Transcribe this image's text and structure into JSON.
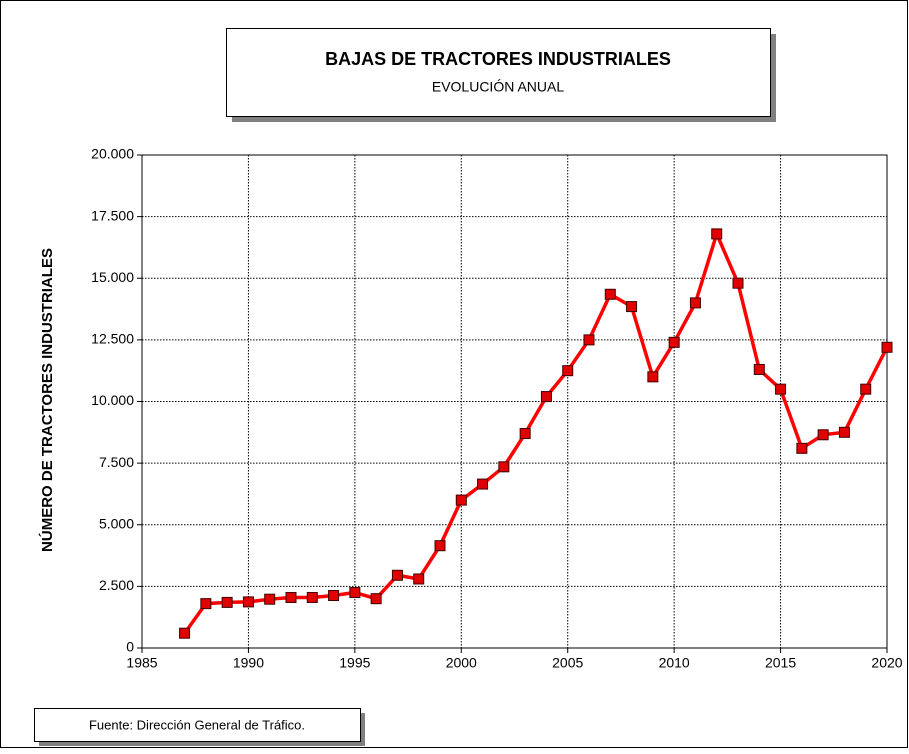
{
  "chart_data": {
    "type": "line",
    "title": "BAJAS DE TRACTORES INDUSTRIALES",
    "subtitle": "EVOLUCIÓN ANUAL",
    "y_label": "NÚMERO DE TRACTORES INDUSTRIALES",
    "source": "Fuente: Dirección General de Tráfico.",
    "x": [
      1987,
      1988,
      1989,
      1990,
      1991,
      1992,
      1993,
      1994,
      1995,
      1996,
      1997,
      1998,
      1999,
      2000,
      2001,
      2002,
      2003,
      2004,
      2005,
      2006,
      2007,
      2008,
      2009,
      2010,
      2011,
      2012,
      2013,
      2014,
      2015,
      2016,
      2017,
      2018,
      2019,
      2020
    ],
    "series": [
      {
        "name": "Bajas",
        "color": "#ff0000",
        "marker_color": "#e00000",
        "values": [
          600,
          1800,
          1850,
          1870,
          1980,
          2050,
          2050,
          2130,
          2250,
          2000,
          2950,
          2800,
          4150,
          6000,
          6650,
          7350,
          8700,
          10200,
          11250,
          12500,
          14350,
          13850,
          11000,
          12400,
          14000,
          16800,
          14800,
          11300,
          10500,
          8100,
          8650,
          8750,
          10500,
          12200
        ]
      }
    ],
    "xlim": [
      1985,
      2020
    ],
    "xticks": [
      1985,
      1990,
      1995,
      2000,
      2005,
      2010,
      2015,
      2020
    ],
    "ylim": [
      0,
      20000
    ],
    "yticks": [
      0,
      {
        "value": 2500,
        "label": "2.500"
      },
      {
        "value": 5000,
        "label": "5.000"
      },
      {
        "value": 7500,
        "label": "7.500"
      },
      {
        "value": 10000,
        "label": "10.000"
      },
      {
        "value": 12500,
        "label": "12.500"
      },
      {
        "value": 15000,
        "label": "15.000"
      },
      {
        "value": 17500,
        "label": "17.500"
      },
      {
        "value": 20000,
        "label": "20.000"
      }
    ],
    "grid": true
  }
}
